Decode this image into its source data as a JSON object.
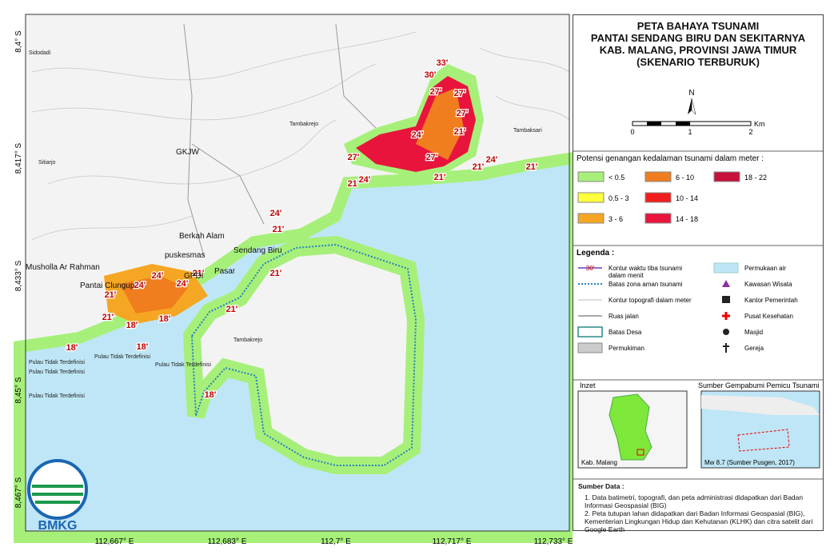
{
  "map": {
    "lat_labels": [
      "8,4° S",
      "8,417° S",
      "8,433° S",
      "8,45° S",
      "8,467° S"
    ],
    "lon_labels": [
      "112,667° E",
      "112,683° E",
      "112,7° E",
      "112,717° E",
      "112,733° E"
    ],
    "places": [
      "Sidodadi",
      "Sitiarjo",
      "GKJW",
      "Tambakrejo",
      "Tambaksari",
      "Berkah Alam",
      "puskesmas",
      "Sendang Biru",
      "Musholla Ar Rahman",
      "Pantai Clungup",
      "GPDI",
      "Pasar",
      "Pulau Tidak Terdefinisi",
      "Pulau Tidak Terdefinisi",
      "Pulau Tidak Terdefinisi",
      "Pulau Tidak Terdefinisi",
      "Pulau Tidak Terdefinisi",
      "Tambakrejo"
    ],
    "time_labels": [
      "33'",
      "30'",
      "27'",
      "27'",
      "27'",
      "24'",
      "21'",
      "27'",
      "27'",
      "21'",
      "24'",
      "21'",
      "21'",
      "24'",
      "21'",
      "24'",
      "21'",
      "24'",
      "24'",
      "24'",
      "21'",
      "21'",
      "21'",
      "21'",
      "18'",
      "18'",
      "18'",
      "18'",
      "18'",
      "21'"
    ],
    "logo": "BMKG"
  },
  "header": {
    "title": [
      "PETA BAHAYA TSUNAMI",
      "PANTAI SENDANG BIRU DAN SEKITARNYA",
      "KAB. MALANG, PROVINSI JAWA TIMUR",
      "(SKENARIO TERBURUK)"
    ]
  },
  "scale": {
    "north": "N",
    "ticks": [
      "0",
      "1",
      "2"
    ],
    "unit": "Km"
  },
  "depth_legend": {
    "title": "Potensi genangan kedalaman tsunami dalam meter :",
    "items": [
      {
        "label": "< 0.5",
        "color": "#a6f07a"
      },
      {
        "label": "6 - 10",
        "color": "#f07d1e"
      },
      {
        "label": "18 - 22",
        "color": "#c8103c"
      },
      {
        "label": "0.5 - 3",
        "color": "#ffff3c"
      },
      {
        "label": "10 - 14",
        "color": "#f01e1e"
      },
      {
        "label": "3 - 6",
        "color": "#f5a623"
      },
      {
        "label": "14 - 18",
        "color": "#e8143c"
      }
    ]
  },
  "legend": {
    "title": "Legenda :",
    "sample_time": "30'",
    "items": [
      "Kontur waktu tiba tsunami dalam menit",
      "Batas zona aman tsunami",
      "Kontur topografi dalam meter",
      "Ruas jalan",
      "Batas Desa",
      "Permukiman",
      "Permukaan air",
      "Kawasan Wisata",
      "Kantor Pemerintah",
      "Pusat Kesehatan",
      "Masjid",
      "Gereja"
    ]
  },
  "inset": {
    "title": "Inzet",
    "label": "Kab. Malang"
  },
  "source_inset": {
    "title": "Sumber Gempabumi Pemicu Tsunami",
    "label": "Mw 8.7 (Sumber Pusgen, 2017)"
  },
  "sources": {
    "title": "Sumber Data :",
    "items": [
      "1. Data batimetri, topografi, dan peta administrasi didapatkan dari Badan Informasi Geospasial (BIG)",
      "2. Peta tutupan lahan didapatkan dari Badan Informasi Geospasial (BIG), Kementerian Lingkungan Hidup dan Kehutanan (KLHK) dan citra satelit dari Google Earth"
    ]
  }
}
